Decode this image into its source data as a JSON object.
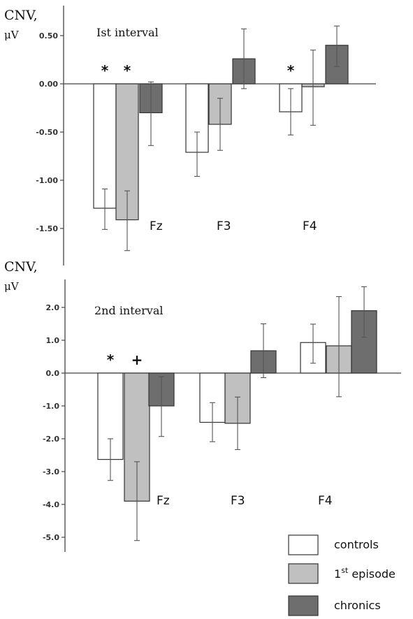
{
  "colors": {
    "controls": "#ffffff",
    "first_episode": "#c0c0c0",
    "chronics": "#6e6e6e",
    "stroke": "#333333"
  },
  "chart_data": [
    {
      "type": "bar",
      "ylabel": "CNV,",
      "yunit": "μV",
      "subtitle": "Ist interval",
      "categories": [
        "Fz",
        "F3",
        "F4"
      ],
      "ylim": [
        -1.75,
        0.68
      ],
      "yticks": [
        0.5,
        0.0,
        -0.5,
        -1.0,
        -1.5
      ],
      "ytick_labels": [
        "0.50",
        "0.00",
        "-0.50",
        "-1.00",
        "-1.50"
      ],
      "series": [
        {
          "name": "controls",
          "values": [
            -1.29,
            -0.71,
            -0.29
          ],
          "err_low": [
            -1.51,
            -0.96,
            -0.53
          ],
          "err_high": [
            -1.09,
            -0.5,
            -0.05
          ]
        },
        {
          "name": "1st episode",
          "values": [
            -1.41,
            -0.42,
            -0.03
          ],
          "err_low": [
            -1.73,
            -0.69,
            -0.43
          ],
          "err_high": [
            -1.11,
            -0.15,
            0.35
          ]
        },
        {
          "name": "chronics",
          "values": [
            -0.3,
            0.26,
            0.4
          ],
          "err_low": [
            -0.64,
            -0.05,
            0.18
          ],
          "err_high": [
            0.02,
            0.57,
            0.6
          ]
        }
      ],
      "markers": [
        {
          "category": 0,
          "series": 0,
          "symbol": "*"
        },
        {
          "category": 0,
          "series": 1,
          "symbol": "*"
        },
        {
          "category": 2,
          "series": 0,
          "symbol": "*"
        }
      ]
    },
    {
      "type": "bar",
      "ylabel": "CNV,",
      "yunit": "μV",
      "subtitle": "2nd interval",
      "categories": [
        "Fz",
        "F3",
        "F4"
      ],
      "ylim": [
        -5.3,
        2.85
      ],
      "yticks": [
        2.0,
        1.0,
        0.0,
        -1.0,
        -2.0,
        -3.0,
        -4.0,
        -5.0
      ],
      "ytick_labels": [
        "2.0",
        "1.0",
        "0.0",
        "-1.0",
        "-2.0",
        "-3.0",
        "-4.0",
        "-5.0"
      ],
      "series": [
        {
          "name": "controls",
          "values": [
            -2.63,
            -1.5,
            0.93
          ],
          "err_low": [
            -3.27,
            -2.09,
            0.3
          ],
          "err_high": [
            -2.0,
            -0.9,
            1.49
          ]
        },
        {
          "name": "1st episode",
          "values": [
            -3.9,
            -1.53,
            0.83
          ],
          "err_low": [
            -5.1,
            -2.33,
            -0.72
          ],
          "err_high": [
            -2.7,
            -0.73,
            2.33
          ]
        },
        {
          "name": "chronics",
          "values": [
            -1.0,
            0.68,
            1.9
          ],
          "err_low": [
            -1.93,
            -0.14,
            1.09
          ],
          "err_high": [
            -0.11,
            1.5,
            2.63
          ]
        }
      ],
      "markers": [
        {
          "category": 0,
          "series": 0,
          "symbol": "*"
        },
        {
          "category": 0,
          "series": 1,
          "symbol": "+"
        }
      ]
    }
  ],
  "legend": [
    {
      "label": "controls",
      "color_key": "controls"
    },
    {
      "label": "1",
      "sup": "st",
      "rest": " episode",
      "color_key": "first_episode"
    },
    {
      "label": "chronics",
      "color_key": "chronics"
    }
  ]
}
